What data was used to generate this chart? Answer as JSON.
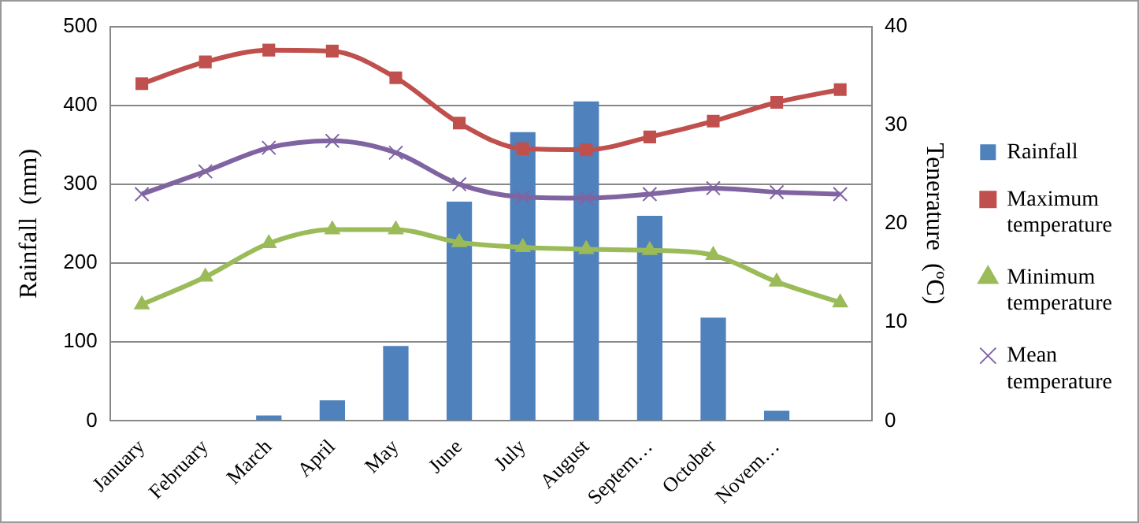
{
  "chart_data": {
    "type": "bar",
    "ylabel": "Rainfall  (mm)",
    "y2label": "Tenerature  (ºC)",
    "categories": [
      "January",
      "February",
      "March",
      "April",
      "May",
      "June",
      "July",
      "August",
      "Septem…",
      "October",
      "Novem…",
      null
    ],
    "ylim": [
      0,
      500
    ],
    "yticks": [
      0,
      100,
      200,
      300,
      400,
      500
    ],
    "y2lim": [
      0,
      40
    ],
    "y2ticks": [
      0,
      10,
      20,
      30,
      40
    ],
    "grid": "y",
    "legend": "right",
    "series": [
      {
        "name": "Rainfall",
        "color": "#4f81bd",
        "values": [
          0,
          0,
          7,
          26,
          95,
          278,
          366,
          405,
          260,
          131,
          13,
          0
        ]
      },
      {
        "name": "Maximum temperature",
        "type": "line",
        "axis": "y2",
        "marker": "square",
        "color": "#c0504d",
        "values": [
          34.2,
          36.4,
          37.6,
          37.5,
          34.8,
          30.2,
          27.6,
          27.5,
          28.8,
          30.4,
          32.3,
          33.6
        ]
      },
      {
        "name": "Minimum temperature",
        "type": "line",
        "axis": "y2",
        "marker": "triangle",
        "color": "#9bbb59",
        "values": [
          11.8,
          14.6,
          18,
          19.4,
          19.4,
          18.1,
          17.6,
          17.4,
          17.3,
          16.8,
          14.1,
          12
        ]
      },
      {
        "name": "Mean temperature",
        "type": "line",
        "axis": "y2",
        "marker": "cross",
        "color": "#8064a2",
        "values": [
          23,
          25.3,
          27.7,
          28.4,
          27.2,
          24,
          22.7,
          22.6,
          23,
          23.6,
          23.2,
          23
        ]
      }
    ]
  }
}
